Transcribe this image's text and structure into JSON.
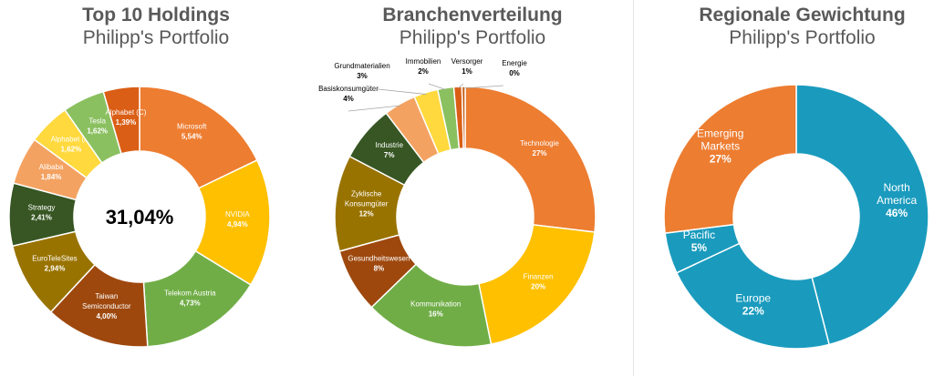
{
  "chart_data": [
    {
      "type": "pie",
      "title": "Top 10 Holdings",
      "subtitle": "Philipp's Portfolio",
      "center_label": "31,04%",
      "categories": [
        "Microsoft",
        "NVIDIA",
        "Telekom Austria",
        "Taiwan Semiconductor",
        "EuroTeleSites",
        "Strategy",
        "Alibaba",
        "Alphabet (A)",
        "Tesla",
        "Alphabet (C)"
      ],
      "values": [
        5.54,
        4.94,
        4.73,
        4.0,
        2.94,
        2.41,
        1.84,
        1.62,
        1.62,
        1.39
      ],
      "labels": [
        "Microsoft\n5,54%",
        "NVIDIA\n4,94%",
        "Telekom Austria\n4,73%",
        "Taiwan\nSemiconductor\n4,00%",
        "EuroTeleSites\n2,94%",
        "Strategy\n2,41%",
        "Alibaba\n1,84%",
        "Alphabet (A)\n1,62%",
        "Tesla\n1,62%",
        "Alphabet (C)\n1,39%"
      ],
      "colors": [
        "#ED7D31",
        "#FFC000",
        "#70AD47",
        "#9E480E",
        "#997300",
        "#375623",
        "#F4A261",
        "#FFD93D",
        "#8BC060",
        "#DA5E15"
      ]
    },
    {
      "type": "pie",
      "title": "Branchenverteilung",
      "subtitle": "Philipp's Portfolio",
      "categories": [
        "Technologie",
        "Finanzen",
        "Kommunikation",
        "Gesundheitswesen",
        "Zyklische Konsumgüter",
        "Industrie",
        "Basiskonsumgüter",
        "Grundmaterialien",
        "Immobilien",
        "Versorger",
        "Energie"
      ],
      "values": [
        27,
        20,
        16,
        8,
        12,
        7,
        4,
        3,
        2,
        1,
        0.4
      ],
      "labels": [
        "Technologie\n27%",
        "Finanzen\n20%",
        "Kommunikation\n16%",
        "Gesundheitswesen\n8%",
        "Zyklische\nKonsumgüter\n12%",
        "Industrie\n7%",
        "Basiskonsumgüter\n4%",
        "Grundmaterialien\n3%",
        "Immobilien\n2%",
        "Versorger\n1%",
        "Energie\n0%"
      ],
      "colors": [
        "#ED7D31",
        "#FFC000",
        "#70AD47",
        "#9E480E",
        "#997300",
        "#375623",
        "#F4A261",
        "#FFD93D",
        "#8BC060",
        "#DA5E15",
        "#C55A11"
      ]
    },
    {
      "type": "pie",
      "title": "Regionale Gewichtung",
      "subtitle": "Philipp's Portfolio",
      "categories": [
        "North America",
        "Europe",
        "Pacific",
        "Emerging Markets"
      ],
      "values": [
        46,
        22,
        5,
        27
      ],
      "labels": [
        "North\nAmerica\n46%",
        "Europe\n22%",
        "Pacific\n5%",
        "Emerging\nMarkets\n27%"
      ],
      "colors": [
        "#1A9BBE",
        "#1A9BBE",
        "#1A9BBE",
        "#ED7D31"
      ]
    }
  ]
}
